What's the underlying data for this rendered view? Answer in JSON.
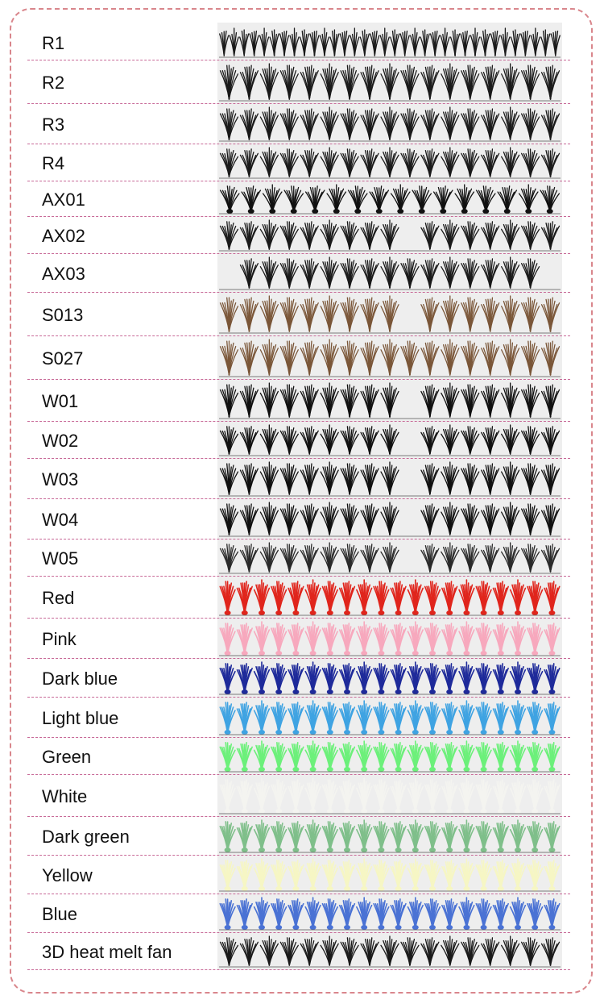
{
  "rows": [
    {
      "label": "R1",
      "color": "#1a1a1a",
      "style": "dense"
    },
    {
      "label": "R2",
      "color": "#1a1a1a",
      "style": "clusters"
    },
    {
      "label": "R3",
      "color": "#1a1a1a",
      "style": "clusters"
    },
    {
      "label": "R4",
      "color": "#1a1a1a",
      "style": "clusters"
    },
    {
      "label": "AX01",
      "color": "#111111",
      "style": "tall"
    },
    {
      "label": "AX02",
      "color": "#1a1a1a",
      "style": "gapped"
    },
    {
      "label": "AX03",
      "color": "#1a1a1a",
      "style": "sparse"
    },
    {
      "label": "S013",
      "color": "#7a5638",
      "style": "gapped"
    },
    {
      "label": "S027",
      "color": "#7a5638",
      "style": "clusters"
    },
    {
      "label": "W01",
      "color": "#111111",
      "style": "gapped"
    },
    {
      "label": "W02",
      "color": "#111111",
      "style": "gapped"
    },
    {
      "label": "W03",
      "color": "#111111",
      "style": "gapped"
    },
    {
      "label": "W04",
      "color": "#111111",
      "style": "gapped"
    },
    {
      "label": "W05",
      "color": "#2a2a2a",
      "style": "gapped"
    },
    {
      "label": "Red",
      "color": "#e0251c",
      "style": "colored"
    },
    {
      "label": "Pink",
      "color": "#f7a8bd",
      "style": "colored"
    },
    {
      "label": "Dark blue",
      "color": "#1e2a9a",
      "style": "colored"
    },
    {
      "label": "Light blue",
      "color": "#3fa3e2",
      "style": "colored"
    },
    {
      "label": "Green",
      "color": "#6cf07a",
      "style": "colored"
    },
    {
      "label": "White",
      "color": "#f4f4f0",
      "style": "colored"
    },
    {
      "label": "Dark green",
      "color": "#7fbf8a",
      "style": "colored"
    },
    {
      "label": "Yellow",
      "color": "#f6f6c4",
      "style": "colored"
    },
    {
      "label": "Blue",
      "color": "#4a72d4",
      "style": "colored"
    },
    {
      "label": "3D heat melt fan",
      "color": "#1a1a1a",
      "style": "clusters"
    }
  ]
}
